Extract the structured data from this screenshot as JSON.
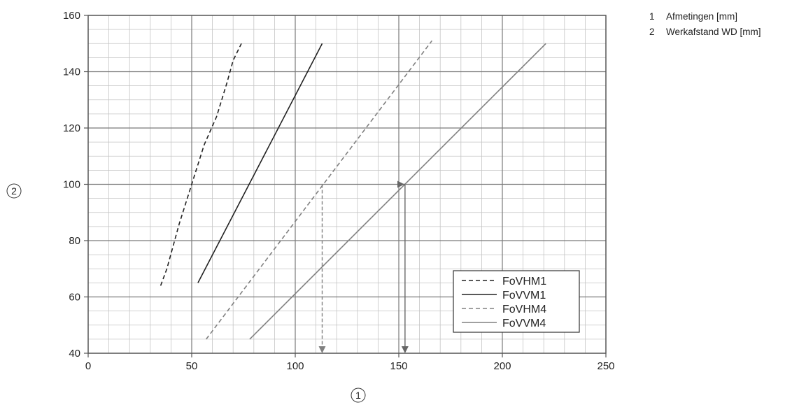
{
  "chart_data": {
    "type": "line",
    "xlim": [
      0,
      250
    ],
    "ylim": [
      40,
      160
    ],
    "x_ticks": [
      0,
      50,
      100,
      150,
      200,
      250
    ],
    "y_ticks": [
      40,
      60,
      80,
      100,
      120,
      140,
      160
    ],
    "x_minor_step": 10,
    "y_minor_step": 5,
    "grid": true,
    "xlabel": "1",
    "ylabel": "2",
    "legend_position": "bottom-right",
    "series": [
      {
        "name": "FoVHM1",
        "color": "#222222",
        "dash": "dashed",
        "points": [
          [
            35,
            64
          ],
          [
            38,
            70
          ],
          [
            44,
            86
          ],
          [
            50,
            100
          ],
          [
            56,
            114
          ],
          [
            62,
            124
          ],
          [
            67,
            136
          ],
          [
            70,
            144
          ],
          [
            74,
            150
          ]
        ]
      },
      {
        "name": "FoVVM1",
        "color": "#222222",
        "dash": "solid",
        "points": [
          [
            53,
            65
          ],
          [
            113,
            150
          ]
        ]
      },
      {
        "name": "FoVHM4",
        "color": "#808080",
        "dash": "dashed",
        "points": [
          [
            57,
            45
          ],
          [
            166,
            151
          ]
        ]
      },
      {
        "name": "FoVVM4",
        "color": "#808080",
        "dash": "solid",
        "points": [
          [
            78,
            45
          ],
          [
            221,
            150
          ]
        ]
      }
    ],
    "annotations": [
      {
        "x": 113,
        "from_y": 100,
        "to_y": 40,
        "color": "#808080",
        "dash": "dashed"
      },
      {
        "x": 153,
        "from_y": 100,
        "to_y": 40,
        "color": "#666666",
        "dash": "solid",
        "start_x": 150
      }
    ]
  },
  "side_legend": [
    {
      "num": "1",
      "text": "Afmetingen [mm]"
    },
    {
      "num": "2",
      "text": "Werkafstand WD [mm]"
    }
  ]
}
